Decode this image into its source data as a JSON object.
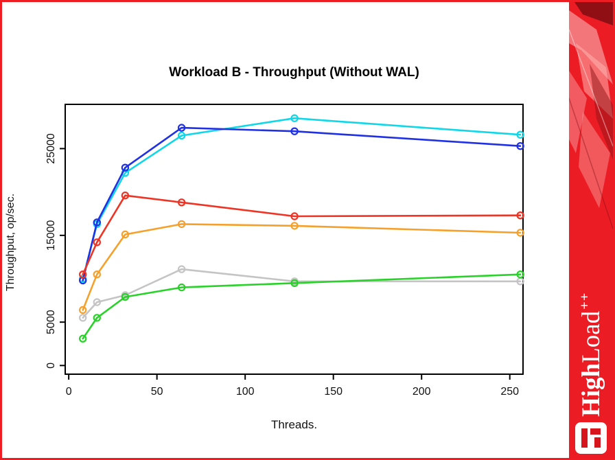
{
  "window": {
    "border_color": "#ee1c23",
    "background": "#ffffff"
  },
  "chart_data": {
    "type": "line",
    "title": "Workload B - Throughput (Without WAL)",
    "xlabel": "Threads.",
    "ylabel": "Throughput, op/sec.",
    "x": [
      8,
      16,
      32,
      64,
      128,
      256
    ],
    "x_ticks": [
      0,
      50,
      100,
      150,
      200,
      250
    ],
    "y_ticks": [
      0,
      5000,
      15000,
      25000
    ],
    "xlim": [
      -2,
      257.5
    ],
    "ylim": [
      -1000,
      30100
    ],
    "grid": false,
    "legend": "none",
    "marker": "open-circle",
    "series": [
      {
        "name": "gray",
        "color": "#c4c4c4",
        "values": [
          5500,
          7300,
          8100,
          11100,
          9700,
          9700
        ]
      },
      {
        "name": "cyan",
        "color": "#0fd7e8",
        "values": [
          10000,
          16300,
          22200,
          26500,
          28500,
          26600
        ]
      },
      {
        "name": "blue",
        "color": "#2031e3",
        "values": [
          9800,
          16500,
          22800,
          27400,
          27000,
          25300
        ]
      },
      {
        "name": "red",
        "color": "#ee3424",
        "values": [
          10500,
          14200,
          19600,
          18800,
          17200,
          17300
        ]
      },
      {
        "name": "orange",
        "color": "#f5a02b",
        "values": [
          6400,
          10500,
          15100,
          16300,
          16100,
          15300
        ]
      },
      {
        "name": "green",
        "color": "#28d228",
        "values": [
          3100,
          5500,
          7900,
          9000,
          9500,
          10500
        ]
      }
    ]
  },
  "banner": {
    "background_color": "#ec1c24",
    "wordmark": {
      "high": "High",
      "load": "Load",
      "plus": "++"
    }
  }
}
